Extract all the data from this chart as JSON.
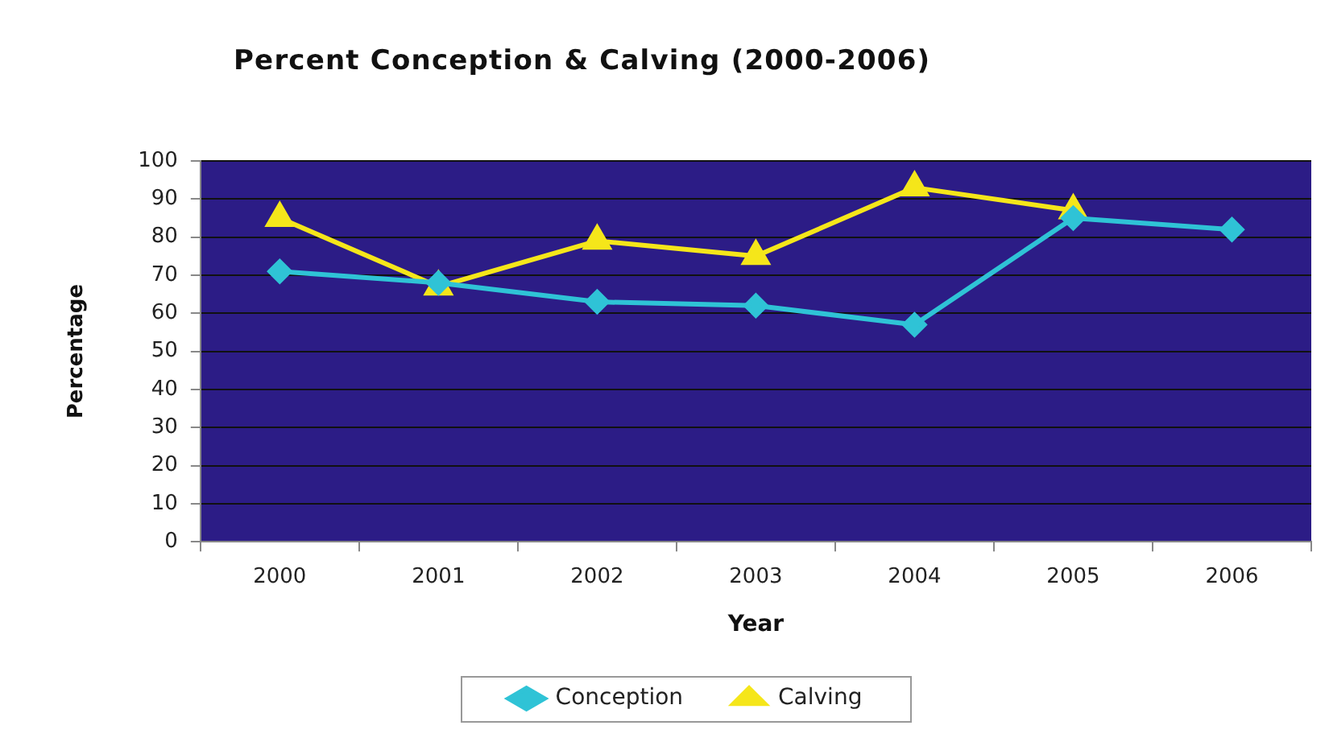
{
  "chart_data": {
    "type": "line",
    "title": "Percent Conception & Calving (2000-2006)",
    "xlabel": "Year",
    "ylabel": "Percentage",
    "categories": [
      "2000",
      "2001",
      "2002",
      "2003",
      "2004",
      "2005",
      "2006"
    ],
    "series": [
      {
        "name": "Conception",
        "color": "#2fc3d6",
        "marker": "diamond",
        "values": [
          71,
          68,
          63,
          62,
          57,
          85,
          82
        ]
      },
      {
        "name": "Calving",
        "color": "#f5e61a",
        "marker": "triangle",
        "values": [
          85,
          67,
          79,
          75,
          93,
          87,
          null
        ]
      }
    ],
    "ylim": [
      0,
      100
    ],
    "yticks": [
      0,
      10,
      20,
      30,
      40,
      50,
      60,
      70,
      80,
      90,
      100
    ],
    "grid": "y",
    "legend": "bottom"
  }
}
